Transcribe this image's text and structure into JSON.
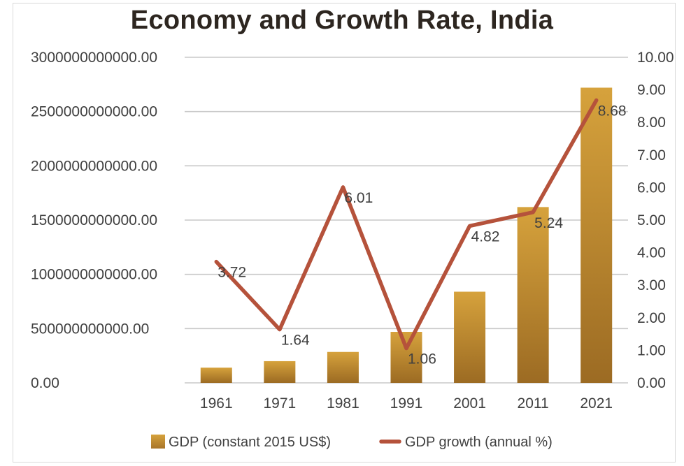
{
  "chart_data": {
    "type": "bar",
    "title": "Economy and Growth Rate, India",
    "categories": [
      "1961",
      "1971",
      "1981",
      "1991",
      "2001",
      "2011",
      "2021"
    ],
    "series": [
      {
        "name": "GDP (constant 2015 US$)",
        "type": "bar",
        "axis": "left",
        "color": "#c8962e",
        "values": [
          140000000000,
          200000000000,
          285000000000,
          470000000000,
          840000000000,
          1620000000000,
          2720000000000
        ]
      },
      {
        "name": "GDP growth (annual %)",
        "type": "line",
        "axis": "right",
        "color": "#b5523b",
        "values": [
          3.72,
          1.64,
          6.01,
          1.06,
          4.82,
          5.24,
          8.68
        ],
        "labels": [
          "3.72",
          "1.64",
          "6.01",
          "1.06",
          "4.82",
          "5.24",
          "8.68"
        ]
      }
    ],
    "y_left": {
      "range": [
        0,
        3000000000000
      ],
      "ticks": [
        0,
        500000000000,
        1000000000000,
        1500000000000,
        2000000000000,
        2500000000000,
        3000000000000
      ],
      "tick_labels": [
        "0.00",
        "500000000000.00",
        "1000000000000.00",
        "1500000000000.00",
        "2000000000000.00",
        "2500000000000.00",
        "3000000000000.00"
      ]
    },
    "y_right": {
      "range": [
        0,
        10
      ],
      "ticks": [
        0,
        1,
        2,
        3,
        4,
        5,
        6,
        7,
        8,
        9,
        10
      ],
      "tick_labels": [
        "0.00",
        "1.00",
        "2.00",
        "3.00",
        "4.00",
        "5.00",
        "6.00",
        "7.00",
        "8.00",
        "9.00",
        "10.00"
      ]
    },
    "grid": true,
    "legend": "bottom"
  }
}
